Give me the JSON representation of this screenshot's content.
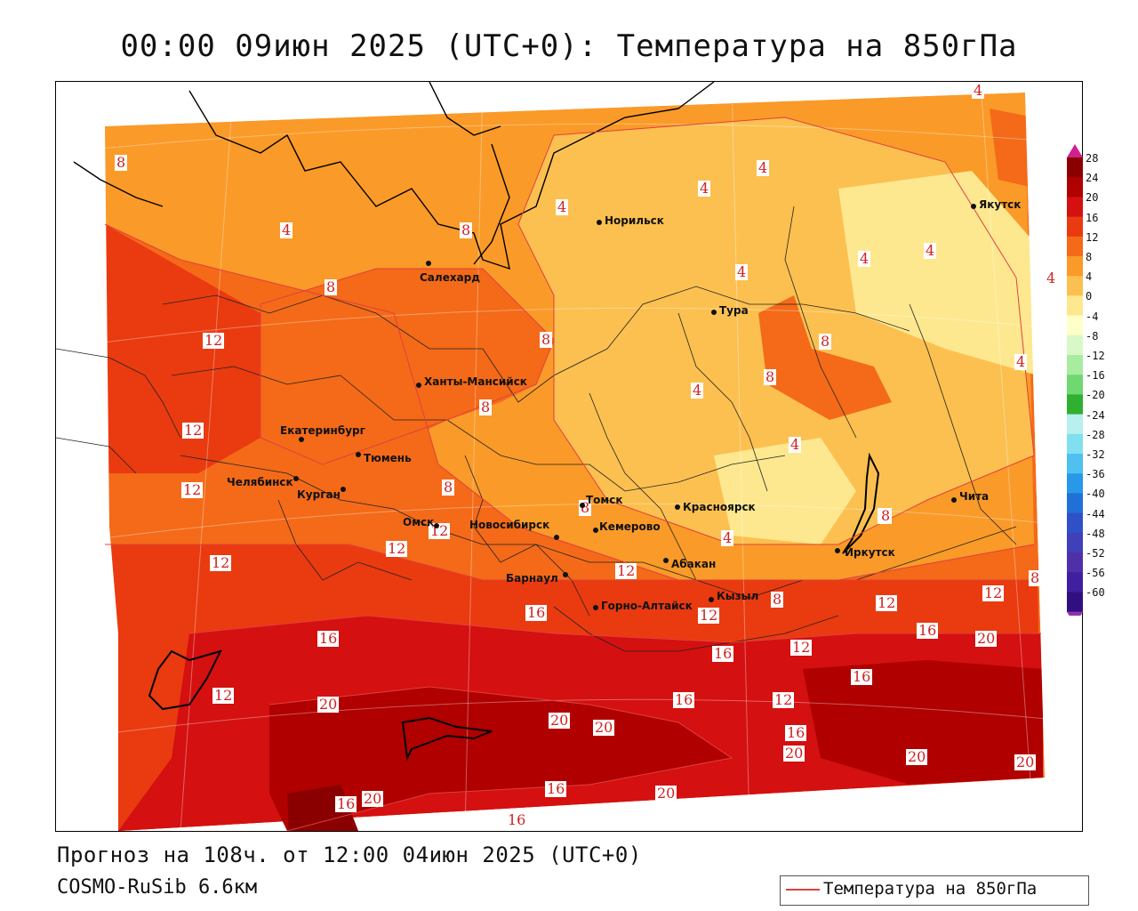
{
  "title": "00:00 09июн 2025 (UTC+0): Температура на 850гПа",
  "footer": {
    "forecast": "Прогноз на 108ч. от 12:00 04июн 2025 (UTC+0)",
    "model": "COSMO-RuSib 6.6км"
  },
  "legend": {
    "label": "Температура на 850гПа",
    "line_color": "#e04040"
  },
  "colorbar": {
    "values": [
      "28",
      "24",
      "20",
      "16",
      "12",
      "8",
      "4",
      "0",
      "-4",
      "-8",
      "-12",
      "-16",
      "-20",
      "-24",
      "-28",
      "-32",
      "-36",
      "-40",
      "-44",
      "-48",
      "-52",
      "-56",
      "-60"
    ],
    "colors": [
      "#8a0000",
      "#b00000",
      "#d41010",
      "#ea3a10",
      "#f46a18",
      "#fa9a28",
      "#fcc050",
      "#fde890",
      "#ffffc8",
      "#d8f8c8",
      "#a8eca0",
      "#70d870",
      "#30b030",
      "#b8f0f0",
      "#80e0f0",
      "#50c0f0",
      "#2898e8",
      "#2070d8",
      "#3050c8",
      "#4040b8",
      "#5030a8",
      "#4020a0",
      "#301080"
    ],
    "top_color": "#d02090",
    "bottom_color": "#9030b0"
  },
  "cities": [
    {
      "name": "Норильск"
    },
    {
      "name": "Салехард"
    },
    {
      "name": "Якутск"
    },
    {
      "name": "Тура"
    },
    {
      "name": "Ханты-Мансийск"
    },
    {
      "name": "Екатеринбург"
    },
    {
      "name": "Тюмень"
    },
    {
      "name": "Челябинск"
    },
    {
      "name": "Курган"
    },
    {
      "name": "Омск"
    },
    {
      "name": "Томск"
    },
    {
      "name": "Новосибирск"
    },
    {
      "name": "Кемерово"
    },
    {
      "name": "Красноярск"
    },
    {
      "name": "Абакан"
    },
    {
      "name": "Барнаул"
    },
    {
      "name": "Горно-Алтайск"
    },
    {
      "name": "Кызыл"
    },
    {
      "name": "Иркутск"
    },
    {
      "name": "Чита"
    }
  ],
  "contour_labels": [
    "4",
    "8",
    "12",
    "16",
    "20"
  ]
}
